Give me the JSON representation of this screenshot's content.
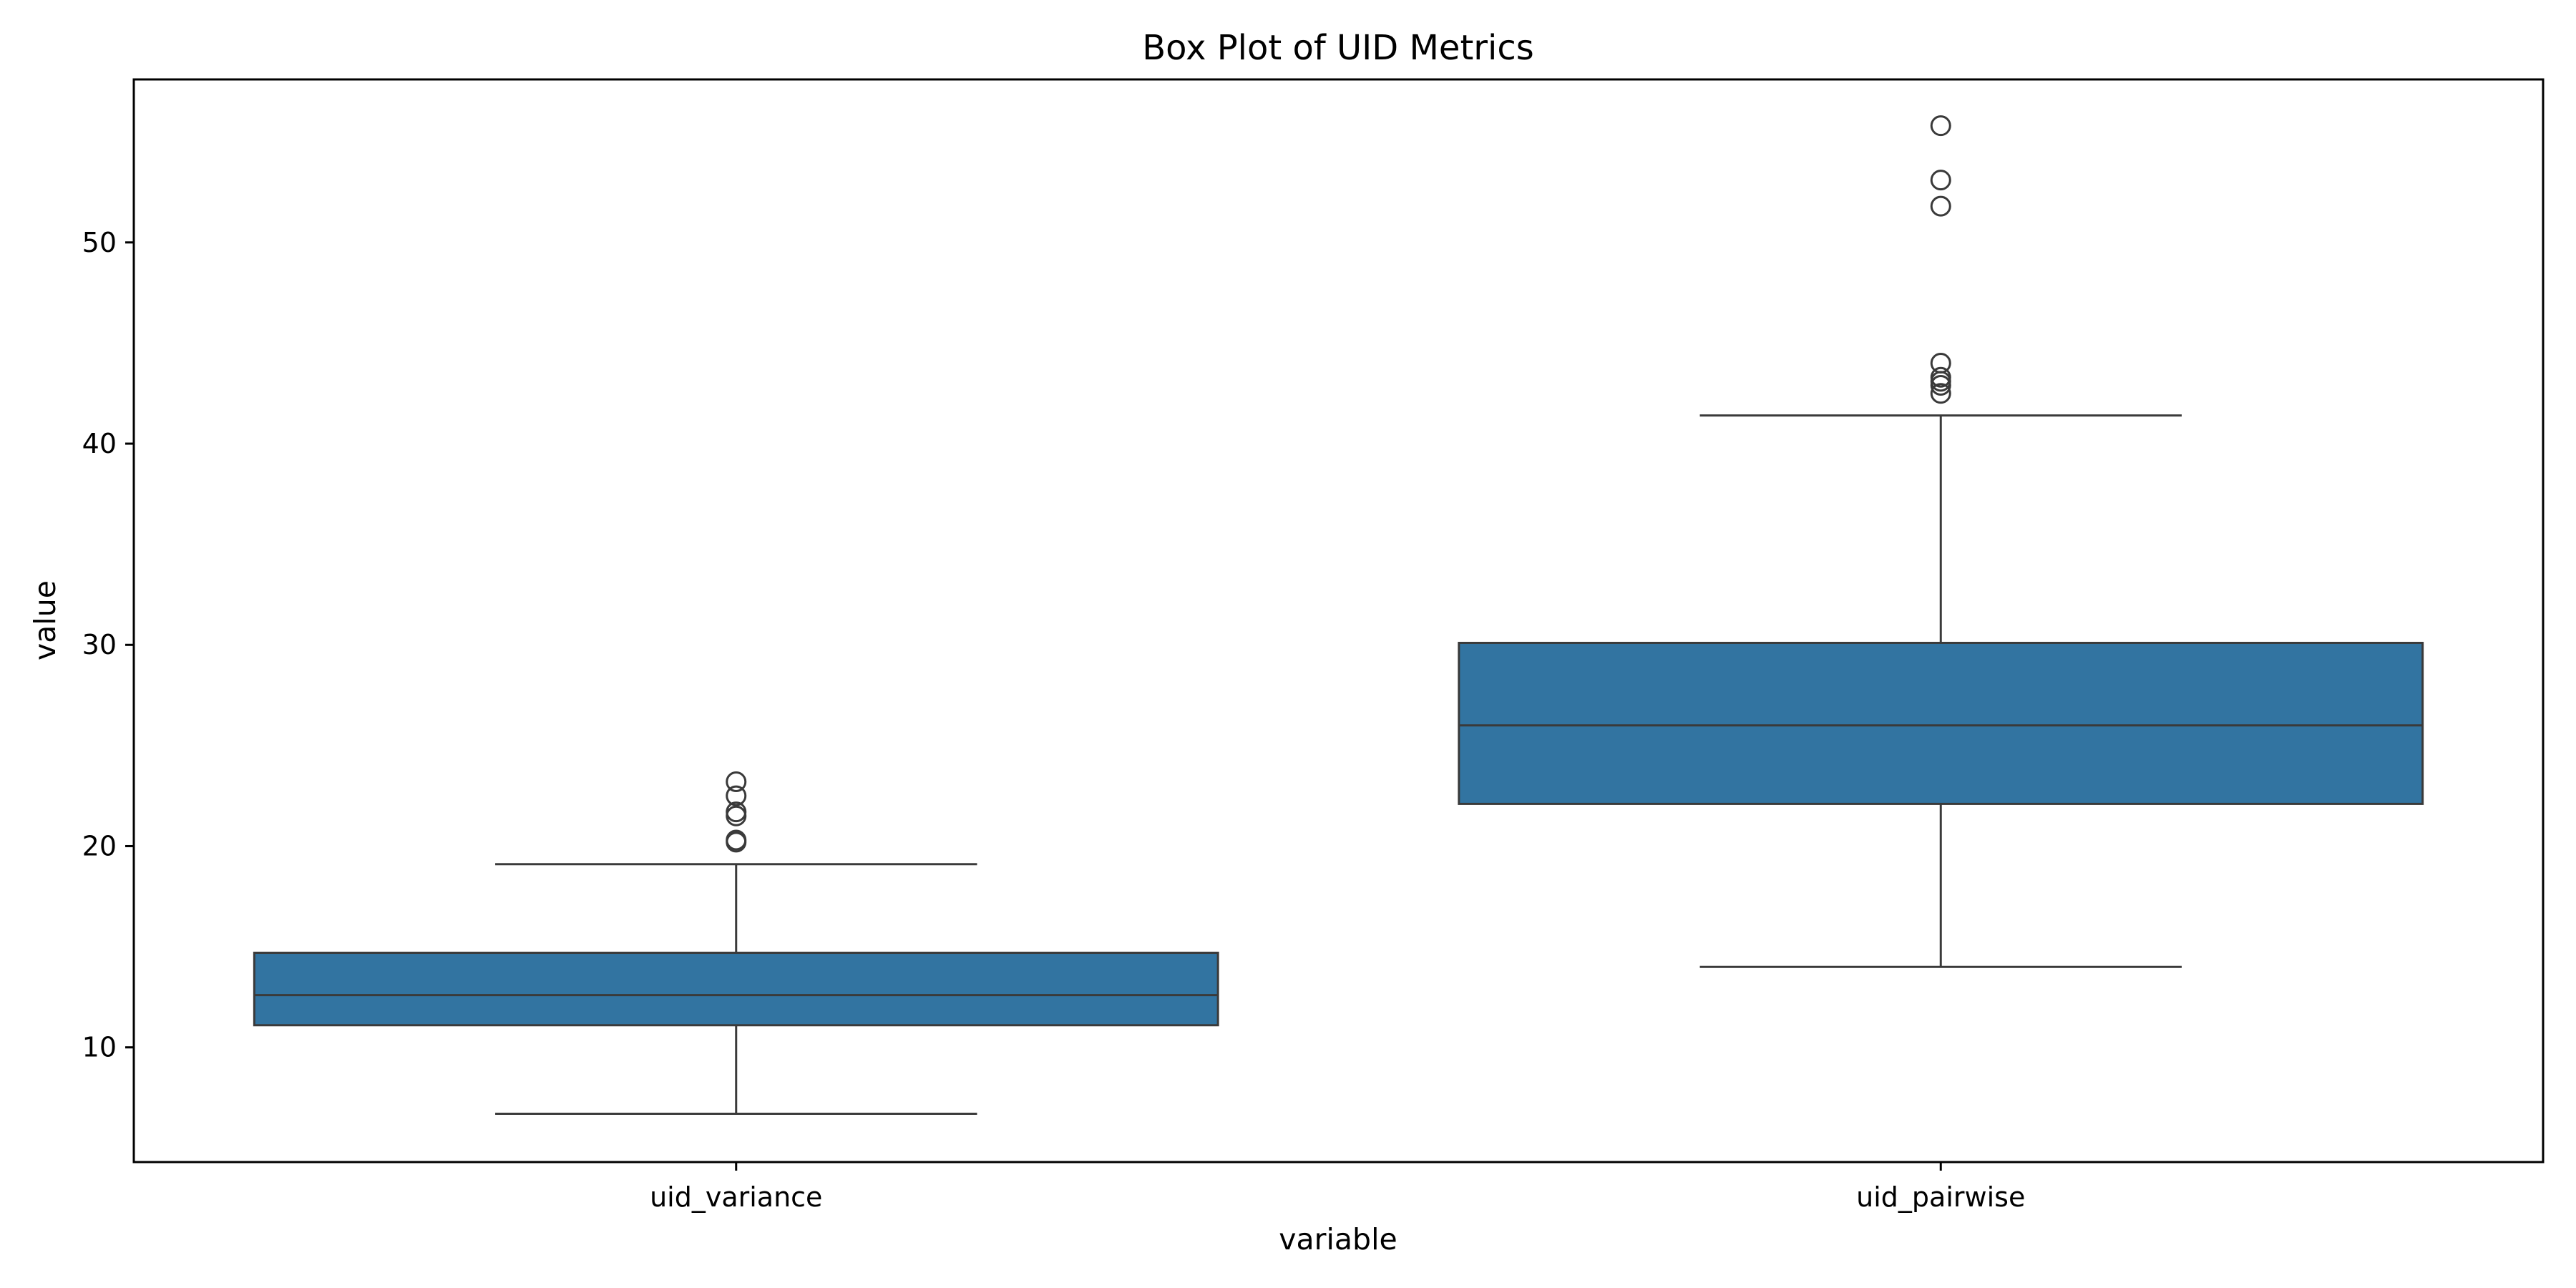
{
  "chart_data": {
    "type": "box",
    "title": "Box Plot of UID Metrics",
    "xlabel": "variable",
    "ylabel": "value",
    "ylim": [
      4.3,
      58.1
    ],
    "yticks": [
      10,
      20,
      30,
      40,
      50
    ],
    "grid": false,
    "legend": "none",
    "box_color": "#3274a1",
    "line_color": "#3a3a3a",
    "categories": [
      "uid_variance",
      "uid_pairwise"
    ],
    "boxes": [
      {
        "category": "uid_variance",
        "whisker_low": 6.7,
        "q1": 11.1,
        "median": 12.6,
        "q3": 14.7,
        "whisker_high": 19.1,
        "outliers": [
          20.2,
          20.3,
          21.5,
          21.7,
          22.5,
          23.2
        ]
      },
      {
        "category": "uid_pairwise",
        "whisker_low": 14.0,
        "q1": 22.1,
        "median": 26.0,
        "q3": 30.1,
        "whisker_high": 41.4,
        "outliers": [
          42.5,
          42.9,
          43.1,
          43.3,
          44.0,
          51.8,
          53.1,
          55.8
        ]
      }
    ]
  }
}
